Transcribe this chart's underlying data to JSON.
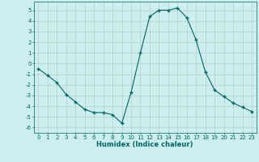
{
  "x": [
    0,
    1,
    2,
    3,
    4,
    5,
    6,
    7,
    8,
    9,
    10,
    11,
    12,
    13,
    14,
    15,
    16,
    17,
    18,
    19,
    20,
    21,
    22,
    23
  ],
  "y": [
    -0.5,
    -1.1,
    -1.8,
    -2.9,
    -3.6,
    -4.3,
    -4.6,
    -4.6,
    -4.8,
    -5.6,
    -2.7,
    1.0,
    4.4,
    5.0,
    5.0,
    5.2,
    4.3,
    2.2,
    -0.8,
    -2.5,
    -3.1,
    -3.7,
    -4.1,
    -4.5
  ],
  "xlabel": "Humidex (Indice chaleur)",
  "ylim": [
    -6.5,
    5.8
  ],
  "xlim": [
    -0.5,
    23.5
  ],
  "yticks": [
    -6,
    -5,
    -4,
    -3,
    -2,
    -1,
    0,
    1,
    2,
    3,
    4,
    5
  ],
  "xticks": [
    0,
    1,
    2,
    3,
    4,
    5,
    6,
    7,
    8,
    9,
    10,
    11,
    12,
    13,
    14,
    15,
    16,
    17,
    18,
    19,
    20,
    21,
    22,
    23
  ],
  "line_color": "#006666",
  "marker": "+",
  "marker_size": 3.5,
  "marker_lw": 1.0,
  "line_width": 0.8,
  "bg_color": "#cceeee",
  "grid_color": "#bbcccc",
  "xlabel_fontsize": 6,
  "tick_fontsize": 5
}
